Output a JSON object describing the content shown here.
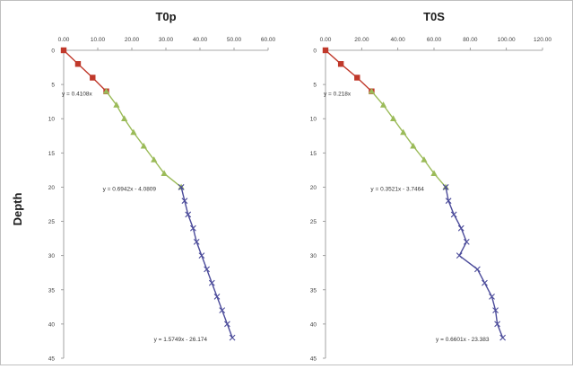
{
  "chart_data": [
    {
      "type": "scatter",
      "title": "T0p",
      "ylabel": "Depth",
      "xlim": [
        0,
        60
      ],
      "ylim": [
        0,
        45
      ],
      "y_inverted": true,
      "x_axis_position": "top",
      "x_ticks": [
        "0.00",
        "10.00",
        "20.00",
        "30.00",
        "40.00",
        "50.00",
        "60.00"
      ],
      "y_ticks": [
        "0",
        "5",
        "10",
        "15",
        "20",
        "25",
        "30",
        "35",
        "40",
        "45"
      ],
      "series": [
        {
          "color": "#c0392b",
          "marker": "square",
          "points": [
            [
              0,
              0
            ],
            [
              4.2,
              2
            ],
            [
              8.5,
              4
            ],
            [
              12.5,
              6
            ]
          ]
        },
        {
          "color": "#9bbb59",
          "marker": "triangle",
          "points": [
            [
              12.5,
              6
            ],
            [
              15.5,
              8
            ],
            [
              17.8,
              10
            ],
            [
              20.5,
              12
            ],
            [
              23.5,
              14
            ],
            [
              26.5,
              16
            ],
            [
              29.5,
              18
            ],
            [
              34.5,
              20
            ]
          ]
        },
        {
          "color": "#4b4b9a",
          "marker": "x",
          "points": [
            [
              34.5,
              20
            ],
            [
              35.5,
              22
            ],
            [
              36.5,
              24
            ],
            [
              38,
              26
            ],
            [
              39,
              28
            ],
            [
              40.5,
              30
            ],
            [
              42,
              32
            ],
            [
              43.5,
              34
            ],
            [
              45,
              36
            ],
            [
              46.5,
              38
            ],
            [
              48,
              40
            ],
            [
              49.5,
              42
            ]
          ]
        }
      ],
      "annotations": [
        {
          "text": "y = 0.4108x",
          "x": 0,
          "y": 6.3
        },
        {
          "text": "y = 0.6942x - 4.0809",
          "x": 12,
          "y": 20.2
        },
        {
          "text": "y = 1.5749x - 26.174",
          "x": 27,
          "y": 42.2
        }
      ]
    },
    {
      "type": "scatter",
      "title": "T0S",
      "xlim": [
        0,
        120
      ],
      "ylim": [
        0,
        45
      ],
      "y_inverted": true,
      "x_axis_position": "top",
      "x_ticks": [
        "0.00",
        "20.00",
        "40.00",
        "60.00",
        "80.00",
        "100.00",
        "120.00"
      ],
      "y_ticks": [
        "0",
        "5",
        "10",
        "15",
        "20",
        "25",
        "30",
        "35",
        "40",
        "45"
      ],
      "series": [
        {
          "color": "#c0392b",
          "marker": "square",
          "points": [
            [
              0,
              0
            ],
            [
              8.5,
              2
            ],
            [
              17.5,
              4
            ],
            [
              25.5,
              6
            ]
          ]
        },
        {
          "color": "#9bbb59",
          "marker": "triangle",
          "points": [
            [
              25.5,
              6
            ],
            [
              32,
              8
            ],
            [
              37.5,
              10
            ],
            [
              43,
              12
            ],
            [
              48.5,
              14
            ],
            [
              54.5,
              16
            ],
            [
              60,
              18
            ],
            [
              66.5,
              20
            ]
          ]
        },
        {
          "color": "#4b4b9a",
          "marker": "x",
          "points": [
            [
              66.5,
              20
            ],
            [
              68,
              22
            ],
            [
              71,
              24
            ],
            [
              75,
              26
            ],
            [
              78,
              28
            ],
            [
              74,
              30
            ],
            [
              84,
              32
            ],
            [
              88,
              34
            ],
            [
              92,
              36
            ],
            [
              94,
              38
            ],
            [
              95,
              40
            ],
            [
              98,
              42
            ]
          ]
        }
      ],
      "annotations": [
        {
          "text": "y = 0.218x",
          "x": 0,
          "y": 6.3
        },
        {
          "text": "y = 0.3521x - 3.7464",
          "x": 26,
          "y": 20.2
        },
        {
          "text": "y = 0.6601x - 23.383",
          "x": 62,
          "y": 42.2
        }
      ]
    }
  ]
}
